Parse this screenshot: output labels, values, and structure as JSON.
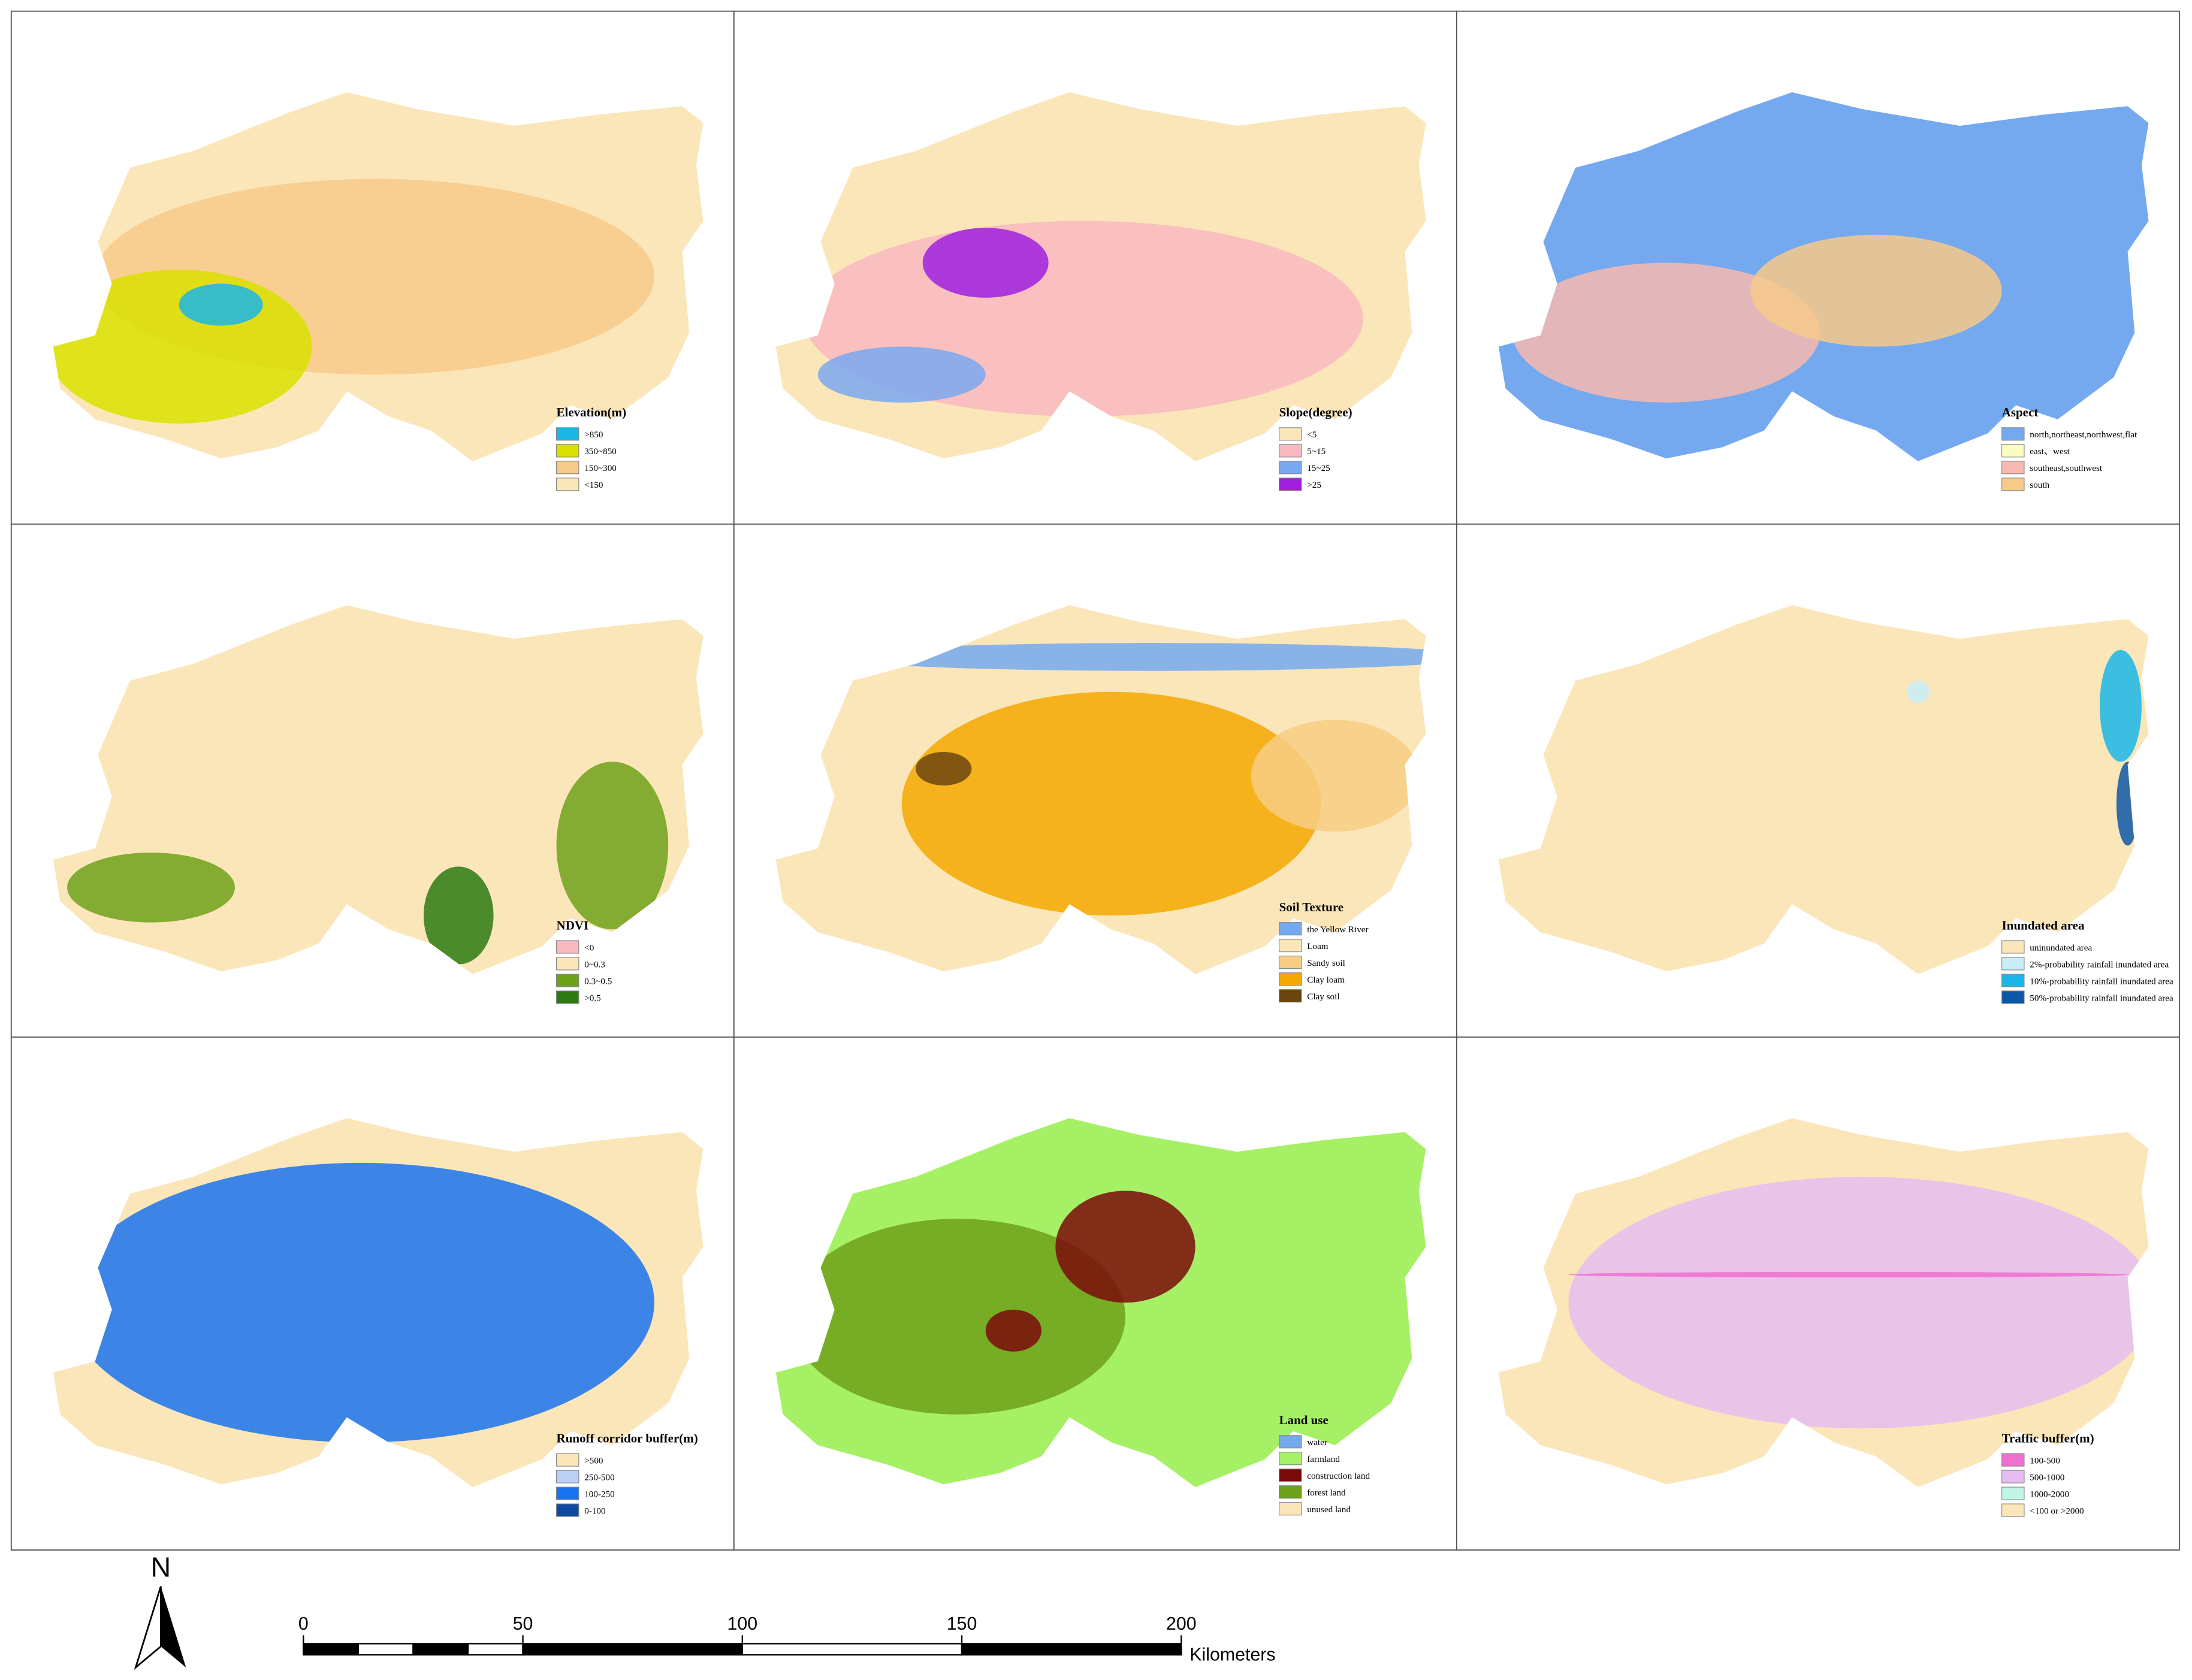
{
  "panels": [
    {
      "legend_title": "Elevation(m)",
      "items": [
        {
          "label": ">850",
          "color": "#1ab6e8"
        },
        {
          "label": "350~850",
          "color": "#dbe000"
        },
        {
          "label": "150~300",
          "color": "#f7c98a"
        },
        {
          "label": "<150",
          "color": "#fbe6b9"
        }
      ]
    },
    {
      "legend_title": "Slope(degree)",
      "items": [
        {
          "label": "<5",
          "color": "#fbe6b9"
        },
        {
          "label": "5~15",
          "color": "#f8b9c0"
        },
        {
          "label": "15~25",
          "color": "#7aa8f0"
        },
        {
          "label": ">25",
          "color": "#a020e0"
        }
      ]
    },
    {
      "legend_title": "Aspect",
      "items": [
        {
          "label": "north,northeast,northwest,flat",
          "color": "#74a9ef"
        },
        {
          "label": "east、west",
          "color": "#fdfcc0"
        },
        {
          "label": "southeast,southwest",
          "color": "#f7b9b0"
        },
        {
          "label": "south",
          "color": "#f7c98a"
        }
      ]
    },
    {
      "legend_title": "NDVI",
      "items": [
        {
          "label": "<0",
          "color": "#f8b9c0"
        },
        {
          "label": "0~0.3",
          "color": "#fbe6b9"
        },
        {
          "label": "0.3~0.5",
          "color": "#6ea11a"
        },
        {
          "label": ">0.5",
          "color": "#2d7a12"
        }
      ]
    },
    {
      "legend_title": "Soil Texture",
      "items": [
        {
          "label": "the Yellow River",
          "color": "#74a9ef"
        },
        {
          "label": "Loam",
          "color": "#fbe6b9"
        },
        {
          "label": "Sandy soil",
          "color": "#f7cd84"
        },
        {
          "label": "Clay loam",
          "color": "#f5a800"
        },
        {
          "label": "Clay soil",
          "color": "#6b4510"
        }
      ]
    },
    {
      "legend_title": "Inundated area",
      "items": [
        {
          "label": "uninundated area",
          "color": "#fbe6b9"
        },
        {
          "label": "2%-probability rainfall inundated area",
          "color": "#c8ecf8"
        },
        {
          "label": "10%-probability rainfall inundated area",
          "color": "#1ab6e8"
        },
        {
          "label": "50%-probability rainfall inundated area",
          "color": "#0d57a8"
        }
      ]
    },
    {
      "legend_title": "Runoff corridor buffer(m)",
      "items": [
        {
          "label": ">500",
          "color": "#fbe6b9"
        },
        {
          "label": "250-500",
          "color": "#bcd0f5"
        },
        {
          "label": "100-250",
          "color": "#1a73ee"
        },
        {
          "label": "0-100",
          "color": "#0d4aa0"
        }
      ]
    },
    {
      "legend_title": "Land use",
      "items": [
        {
          "label": "water",
          "color": "#74a9ef"
        },
        {
          "label": "farmland",
          "color": "#a6f066"
        },
        {
          "label": "construction land",
          "color": "#7a0a0a"
        },
        {
          "label": "forest land",
          "color": "#6ea11a"
        },
        {
          "label": "unused land",
          "color": "#fbe6b9"
        }
      ]
    },
    {
      "legend_title": "Traffic buffer(m)",
      "items": [
        {
          "label": "100-500",
          "color": "#f070d0"
        },
        {
          "label": "500-1000",
          "color": "#e6bcf0"
        },
        {
          "label": "1000-2000",
          "color": "#c0f5e8"
        },
        {
          "label": "<100 or >2000",
          "color": "#fbe6b9"
        }
      ]
    }
  ],
  "north_arrow": "N",
  "scale_bar": {
    "ticks": [
      0,
      50,
      100,
      150,
      200
    ],
    "unit": "Kilometers"
  }
}
